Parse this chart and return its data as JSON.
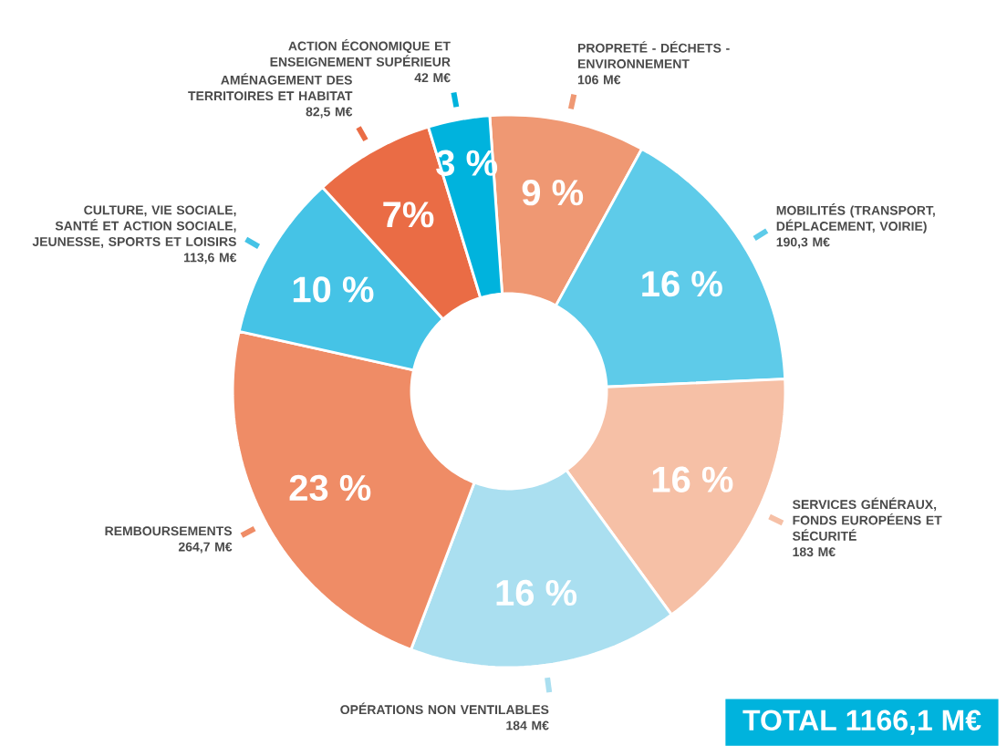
{
  "chart_data": {
    "type": "donut",
    "categories": [
      "PROPRETÉ - DÉCHETS - ENVIRONNEMENT",
      "MOBILITÉS (TRANSPORT, DÉPLACEMENT, VOIRIE)",
      "SERVICES GÉNÉRAUX, FONDS EUROPÉENS ET SÉCURITÉ",
      "OPÉRATIONS NON VENTILABLES",
      "REMBOURSEMENTS",
      "CULTURE, VIE SOCIALE, SANTÉ ET ACTION SOCIALE, JEUNESSE, SPORTS ET LOISIRS",
      "AMÉNAGEMENT DES TERRITOIRES ET HABITAT",
      "ACTION ÉCONOMIQUE ET ENSEIGNEMENT SUPÉRIEUR"
    ],
    "values": [
      106,
      190.3,
      183,
      184,
      264.7,
      113.6,
      82.5,
      42
    ],
    "value_labels": [
      "106 M€",
      "190,3 M€",
      "183 M€",
      "184 M€",
      "264,7 M€",
      "113,6 M€",
      "82,5 M€",
      "42 M€"
    ],
    "colors": [
      "#ef9873",
      "#5ecbe9",
      "#f6c0a6",
      "#aadff0",
      "#ef8c66",
      "#45c3e6",
      "#ea6c45",
      "#00b3dd"
    ],
    "annotations": [
      "9 %",
      "16 %",
      "16 %",
      "16 %",
      "23 %",
      "10 %",
      "7%",
      "3 %",
      "TOTAL 1166,1 M€"
    ]
  }
}
